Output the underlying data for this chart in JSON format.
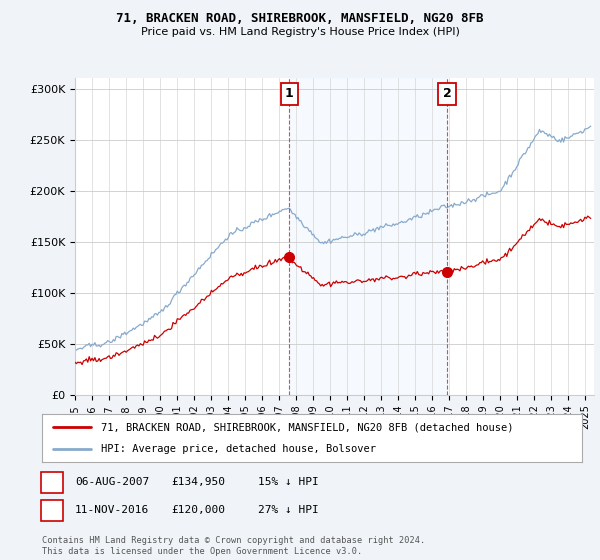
{
  "title": "71, BRACKEN ROAD, SHIREBROOK, MANSFIELD, NG20 8FB",
  "subtitle": "Price paid vs. HM Land Registry's House Price Index (HPI)",
  "ylabel_ticks": [
    "£0",
    "£50K",
    "£100K",
    "£150K",
    "£200K",
    "£250K",
    "£300K"
  ],
  "ytick_values": [
    0,
    50000,
    100000,
    150000,
    200000,
    250000,
    300000
  ],
  "ylim": [
    0,
    310000
  ],
  "xlim_start": 1995.0,
  "xlim_end": 2025.5,
  "xtick_years": [
    1995,
    1996,
    1997,
    1998,
    1999,
    2000,
    2001,
    2002,
    2003,
    2004,
    2005,
    2006,
    2007,
    2008,
    2009,
    2010,
    2011,
    2012,
    2013,
    2014,
    2015,
    2016,
    2017,
    2018,
    2019,
    2020,
    2021,
    2022,
    2023,
    2024,
    2025
  ],
  "sale1_x": 2007.6,
  "sale1_y": 134950,
  "sale2_x": 2016.87,
  "sale2_y": 120000,
  "sale_color": "#cc0000",
  "hpi_color": "#88aacc",
  "shade_color": "#ddeeff",
  "annotation1_label": "1",
  "annotation2_label": "2",
  "vline_color": "#cc3333",
  "legend_label1": "71, BRACKEN ROAD, SHIREBROOK, MANSFIELD, NG20 8FB (detached house)",
  "legend_label2": "HPI: Average price, detached house, Bolsover",
  "table_row1": [
    "1",
    "06-AUG-2007",
    "£134,950",
    "15% ↓ HPI"
  ],
  "table_row2": [
    "2",
    "11-NOV-2016",
    "£120,000",
    "27% ↓ HPI"
  ],
  "footer": "Contains HM Land Registry data © Crown copyright and database right 2024.\nThis data is licensed under the Open Government Licence v3.0.",
  "bg_color": "#f0f4f8",
  "plot_bg_color": "#ffffff"
}
